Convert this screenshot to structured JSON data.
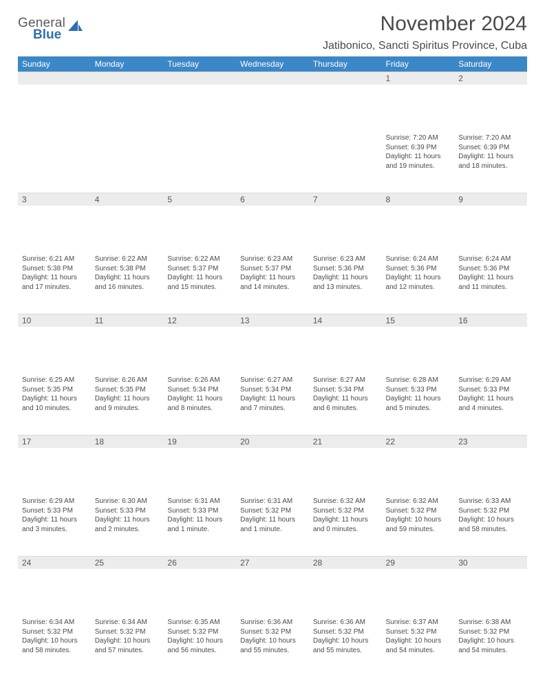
{
  "logo": {
    "general": "General",
    "blue": "Blue"
  },
  "header": {
    "month_title": "November 2024",
    "location": "Jatibonico, Sancti Spiritus Province, Cuba"
  },
  "calendar": {
    "type": "table",
    "columns": [
      "Sunday",
      "Monday",
      "Tuesday",
      "Wednesday",
      "Thursday",
      "Friday",
      "Saturday"
    ],
    "header_bg": "#3b87c8",
    "header_fg": "#ffffff",
    "daynum_bg": "#ececec",
    "text_color": "#4a4a4a",
    "background_color": "#ffffff",
    "info_fontsize": 10,
    "header_fontsize": 12,
    "weeks": [
      [
        {
          "n": "",
          "sunrise": "",
          "sunset": "",
          "daylight": ""
        },
        {
          "n": "",
          "sunrise": "",
          "sunset": "",
          "daylight": ""
        },
        {
          "n": "",
          "sunrise": "",
          "sunset": "",
          "daylight": ""
        },
        {
          "n": "",
          "sunrise": "",
          "sunset": "",
          "daylight": ""
        },
        {
          "n": "",
          "sunrise": "",
          "sunset": "",
          "daylight": ""
        },
        {
          "n": "1",
          "sunrise": "Sunrise: 7:20 AM",
          "sunset": "Sunset: 6:39 PM",
          "daylight": "Daylight: 11 hours and 19 minutes."
        },
        {
          "n": "2",
          "sunrise": "Sunrise: 7:20 AM",
          "sunset": "Sunset: 6:39 PM",
          "daylight": "Daylight: 11 hours and 18 minutes."
        }
      ],
      [
        {
          "n": "3",
          "sunrise": "Sunrise: 6:21 AM",
          "sunset": "Sunset: 5:38 PM",
          "daylight": "Daylight: 11 hours and 17 minutes."
        },
        {
          "n": "4",
          "sunrise": "Sunrise: 6:22 AM",
          "sunset": "Sunset: 5:38 PM",
          "daylight": "Daylight: 11 hours and 16 minutes."
        },
        {
          "n": "5",
          "sunrise": "Sunrise: 6:22 AM",
          "sunset": "Sunset: 5:37 PM",
          "daylight": "Daylight: 11 hours and 15 minutes."
        },
        {
          "n": "6",
          "sunrise": "Sunrise: 6:23 AM",
          "sunset": "Sunset: 5:37 PM",
          "daylight": "Daylight: 11 hours and 14 minutes."
        },
        {
          "n": "7",
          "sunrise": "Sunrise: 6:23 AM",
          "sunset": "Sunset: 5:36 PM",
          "daylight": "Daylight: 11 hours and 13 minutes."
        },
        {
          "n": "8",
          "sunrise": "Sunrise: 6:24 AM",
          "sunset": "Sunset: 5:36 PM",
          "daylight": "Daylight: 11 hours and 12 minutes."
        },
        {
          "n": "9",
          "sunrise": "Sunrise: 6:24 AM",
          "sunset": "Sunset: 5:36 PM",
          "daylight": "Daylight: 11 hours and 11 minutes."
        }
      ],
      [
        {
          "n": "10",
          "sunrise": "Sunrise: 6:25 AM",
          "sunset": "Sunset: 5:35 PM",
          "daylight": "Daylight: 11 hours and 10 minutes."
        },
        {
          "n": "11",
          "sunrise": "Sunrise: 6:26 AM",
          "sunset": "Sunset: 5:35 PM",
          "daylight": "Daylight: 11 hours and 9 minutes."
        },
        {
          "n": "12",
          "sunrise": "Sunrise: 6:26 AM",
          "sunset": "Sunset: 5:34 PM",
          "daylight": "Daylight: 11 hours and 8 minutes."
        },
        {
          "n": "13",
          "sunrise": "Sunrise: 6:27 AM",
          "sunset": "Sunset: 5:34 PM",
          "daylight": "Daylight: 11 hours and 7 minutes."
        },
        {
          "n": "14",
          "sunrise": "Sunrise: 6:27 AM",
          "sunset": "Sunset: 5:34 PM",
          "daylight": "Daylight: 11 hours and 6 minutes."
        },
        {
          "n": "15",
          "sunrise": "Sunrise: 6:28 AM",
          "sunset": "Sunset: 5:33 PM",
          "daylight": "Daylight: 11 hours and 5 minutes."
        },
        {
          "n": "16",
          "sunrise": "Sunrise: 6:29 AM",
          "sunset": "Sunset: 5:33 PM",
          "daylight": "Daylight: 11 hours and 4 minutes."
        }
      ],
      [
        {
          "n": "17",
          "sunrise": "Sunrise: 6:29 AM",
          "sunset": "Sunset: 5:33 PM",
          "daylight": "Daylight: 11 hours and 3 minutes."
        },
        {
          "n": "18",
          "sunrise": "Sunrise: 6:30 AM",
          "sunset": "Sunset: 5:33 PM",
          "daylight": "Daylight: 11 hours and 2 minutes."
        },
        {
          "n": "19",
          "sunrise": "Sunrise: 6:31 AM",
          "sunset": "Sunset: 5:33 PM",
          "daylight": "Daylight: 11 hours and 1 minute."
        },
        {
          "n": "20",
          "sunrise": "Sunrise: 6:31 AM",
          "sunset": "Sunset: 5:32 PM",
          "daylight": "Daylight: 11 hours and 1 minute."
        },
        {
          "n": "21",
          "sunrise": "Sunrise: 6:32 AM",
          "sunset": "Sunset: 5:32 PM",
          "daylight": "Daylight: 11 hours and 0 minutes."
        },
        {
          "n": "22",
          "sunrise": "Sunrise: 6:32 AM",
          "sunset": "Sunset: 5:32 PM",
          "daylight": "Daylight: 10 hours and 59 minutes."
        },
        {
          "n": "23",
          "sunrise": "Sunrise: 6:33 AM",
          "sunset": "Sunset: 5:32 PM",
          "daylight": "Daylight: 10 hours and 58 minutes."
        }
      ],
      [
        {
          "n": "24",
          "sunrise": "Sunrise: 6:34 AM",
          "sunset": "Sunset: 5:32 PM",
          "daylight": "Daylight: 10 hours and 58 minutes."
        },
        {
          "n": "25",
          "sunrise": "Sunrise: 6:34 AM",
          "sunset": "Sunset: 5:32 PM",
          "daylight": "Daylight: 10 hours and 57 minutes."
        },
        {
          "n": "26",
          "sunrise": "Sunrise: 6:35 AM",
          "sunset": "Sunset: 5:32 PM",
          "daylight": "Daylight: 10 hours and 56 minutes."
        },
        {
          "n": "27",
          "sunrise": "Sunrise: 6:36 AM",
          "sunset": "Sunset: 5:32 PM",
          "daylight": "Daylight: 10 hours and 55 minutes."
        },
        {
          "n": "28",
          "sunrise": "Sunrise: 6:36 AM",
          "sunset": "Sunset: 5:32 PM",
          "daylight": "Daylight: 10 hours and 55 minutes."
        },
        {
          "n": "29",
          "sunrise": "Sunrise: 6:37 AM",
          "sunset": "Sunset: 5:32 PM",
          "daylight": "Daylight: 10 hours and 54 minutes."
        },
        {
          "n": "30",
          "sunrise": "Sunrise: 6:38 AM",
          "sunset": "Sunset: 5:32 PM",
          "daylight": "Daylight: 10 hours and 54 minutes."
        }
      ]
    ]
  }
}
